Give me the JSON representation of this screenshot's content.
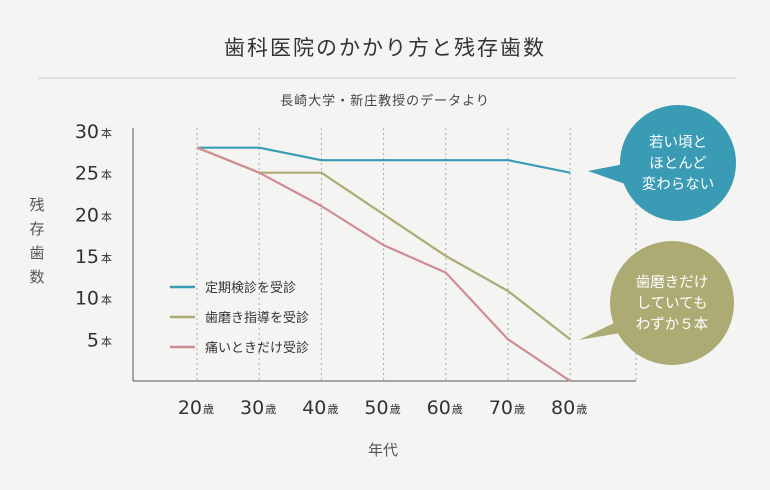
{
  "chart_data": {
    "type": "line",
    "title": "歯科医院のかかり方と残存歯数",
    "subtitle": "長崎大学・新庄教授のデータより",
    "ylabel": "残存歯数",
    "xlabel": "年代",
    "y_unit": "本",
    "x_unit": "歳",
    "ylim": [
      0,
      30
    ],
    "yticks": [
      5,
      10,
      15,
      20,
      25,
      30
    ],
    "x": [
      20,
      30,
      40,
      50,
      60,
      70,
      80
    ],
    "grid": "vertical dotted",
    "legend_position": "bottom-left",
    "series": [
      {
        "name": "定期検診を受診",
        "color": "#3a9bb5",
        "values": [
          28,
          28,
          26.5,
          26.5,
          26.5,
          26.5,
          25
        ]
      },
      {
        "name": "歯磨き指導を受診",
        "color": "#adab74",
        "values": [
          28,
          25,
          25,
          20,
          15,
          10.8,
          5
        ]
      },
      {
        "name": "痛いときだけ受診",
        "color": "#d08d91",
        "values": [
          28,
          25,
          21,
          16.3,
          13,
          5,
          0
        ]
      }
    ],
    "annotations": [
      {
        "text": [
          "若い頃と",
          "ほとんど",
          "変わらない"
        ],
        "color": "#3a9bb5"
      },
      {
        "text": [
          "歯磨きだけ",
          "していても",
          "わずか５本"
        ],
        "color": "#adab74"
      }
    ]
  }
}
